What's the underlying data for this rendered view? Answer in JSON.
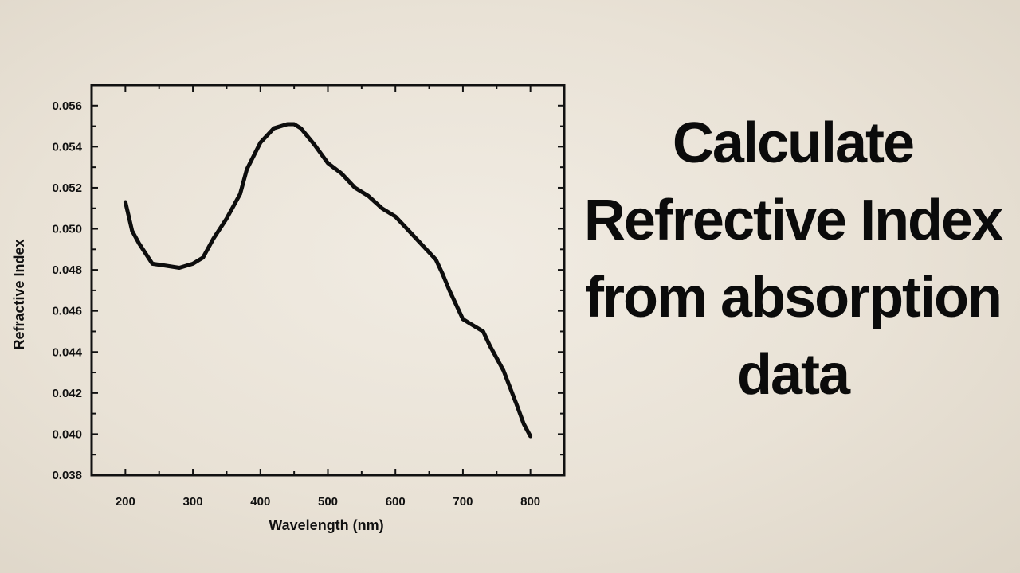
{
  "headline": {
    "lines": [
      "Calculate",
      "Refrective Index",
      "from absorption",
      "data"
    ]
  },
  "chart_data": {
    "type": "line",
    "xlabel": "Wavelength (nm)",
    "ylabel": "Refractive Index",
    "xlim": [
      150,
      850
    ],
    "ylim": [
      0.038,
      0.057
    ],
    "x_ticks": [
      200,
      300,
      400,
      500,
      600,
      700,
      800
    ],
    "y_ticks": [
      0.038,
      0.04,
      0.042,
      0.044,
      0.046,
      0.048,
      0.05,
      0.052,
      0.054,
      0.056
    ],
    "x_tick_labels": [
      "200",
      "300",
      "400",
      "500",
      "600",
      "700",
      "800"
    ],
    "y_tick_labels": [
      "0.038",
      "0.040",
      "0.042",
      "0.044",
      "0.046",
      "0.048",
      "0.050",
      "0.052",
      "0.054",
      "0.056"
    ],
    "grid": false,
    "series": [
      {
        "color": "#0d0d0d",
        "x": [
          200,
          210,
          220,
          240,
          260,
          280,
          300,
          315,
          330,
          350,
          370,
          380,
          400,
          420,
          440,
          450,
          460,
          480,
          500,
          520,
          540,
          560,
          580,
          600,
          620,
          640,
          660,
          670,
          680,
          700,
          710,
          730,
          740,
          760,
          780,
          790,
          800
        ],
        "y": [
          0.0513,
          0.0499,
          0.0493,
          0.0483,
          0.0482,
          0.0481,
          0.0483,
          0.0486,
          0.0495,
          0.0505,
          0.0517,
          0.0529,
          0.0542,
          0.0549,
          0.0551,
          0.0551,
          0.0549,
          0.0541,
          0.0532,
          0.0527,
          0.052,
          0.0516,
          0.051,
          0.0506,
          0.0499,
          0.0492,
          0.0485,
          0.0478,
          0.047,
          0.0456,
          0.0454,
          0.045,
          0.0443,
          0.0431,
          0.0414,
          0.0405,
          0.0399
        ]
      }
    ]
  }
}
